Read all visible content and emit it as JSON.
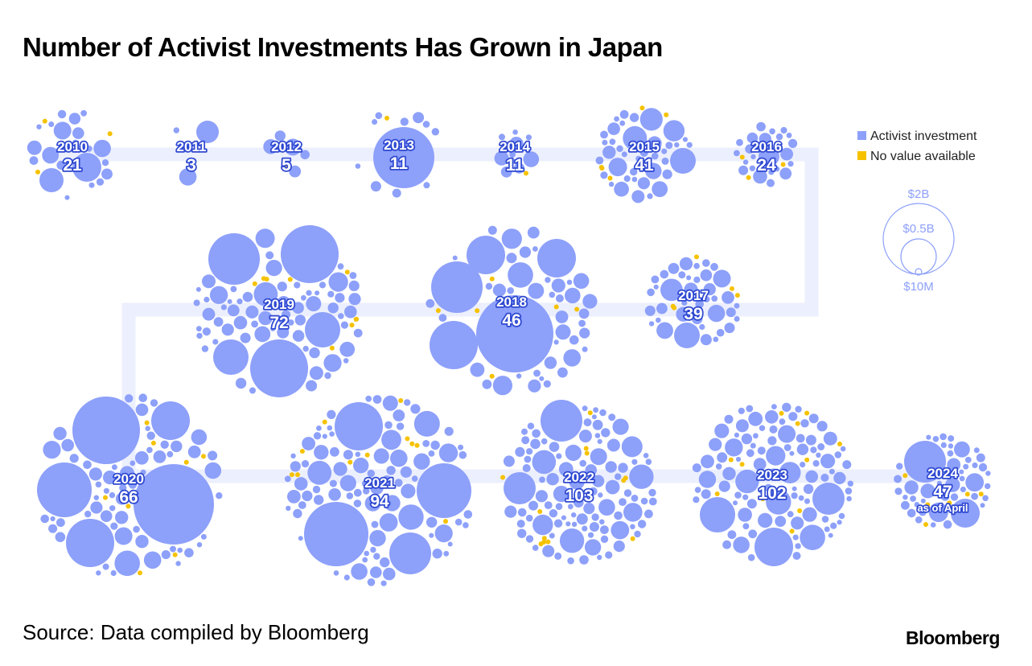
{
  "title": "Number of Activist Investments Has Grown in Japan",
  "source": "Source: Data compiled by Bloomberg",
  "brand": "Bloomberg",
  "colors": {
    "activist": "#8da0fa",
    "no_value": "#f6c200",
    "path": "#eceffd",
    "label_stroke": "#2f49d1",
    "scale": "#8da0fa"
  },
  "chart_data": {
    "type": "packed-bubble",
    "unit": "number of activist investments per year; bubble area = investment value",
    "series": [
      {
        "name": "Activist investment"
      },
      {
        "name": "No value available"
      }
    ],
    "years": [
      {
        "year": "2010",
        "count": 21
      },
      {
        "year": "2011",
        "count": 3
      },
      {
        "year": "2012",
        "count": 5
      },
      {
        "year": "2013",
        "count": 11
      },
      {
        "year": "2014",
        "count": 11
      },
      {
        "year": "2015",
        "count": 41
      },
      {
        "year": "2016",
        "count": 24
      },
      {
        "year": "2017",
        "count": 39
      },
      {
        "year": "2018",
        "count": 46
      },
      {
        "year": "2019",
        "count": 72
      },
      {
        "year": "2020",
        "count": 66
      },
      {
        "year": "2021",
        "count": 94
      },
      {
        "year": "2022",
        "count": 103
      },
      {
        "year": "2023",
        "count": 102
      },
      {
        "year": "2024",
        "count": 47,
        "note": "as of April"
      }
    ],
    "size_legend": [
      "$2B",
      "$0.5B",
      "$10M"
    ]
  }
}
